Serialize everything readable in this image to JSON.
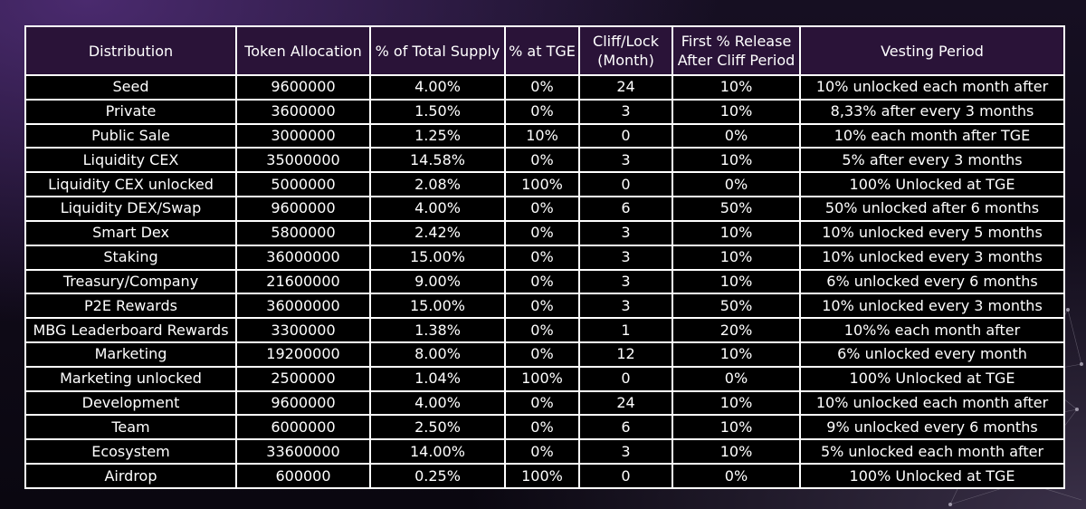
{
  "table": {
    "headers": {
      "distribution": "Distribution",
      "allocation": "Token Allocation",
      "percent_supply": "% of Total Supply",
      "percent_tge": "% at TGE",
      "cliff_line1": "Cliff/Lock",
      "cliff_line2": "(Month)",
      "first_release_line1": "First % Release",
      "first_release_line2": "After Cliff Period",
      "vesting": "Vesting Period"
    },
    "rows": [
      {
        "distribution": "Seed",
        "allocation": "9600000",
        "percent_supply": "4.00%",
        "percent_tge": "0%",
        "cliff": "24",
        "first_release": "10%",
        "vesting": "10% unlocked each month after"
      },
      {
        "distribution": "Private",
        "allocation": "3600000",
        "percent_supply": "1.50%",
        "percent_tge": "0%",
        "cliff": "3",
        "first_release": "10%",
        "vesting": "8,33% after every 3 months"
      },
      {
        "distribution": "Public Sale",
        "allocation": "3000000",
        "percent_supply": "1.25%",
        "percent_tge": "10%",
        "cliff": "0",
        "first_release": "0%",
        "vesting": "10% each month after TGE"
      },
      {
        "distribution": "Liquidity CEX",
        "allocation": "35000000",
        "percent_supply": "14.58%",
        "percent_tge": "0%",
        "cliff": "3",
        "first_release": "10%",
        "vesting": "5% after every 3 months"
      },
      {
        "distribution": "Liquidity CEX unlocked",
        "allocation": "5000000",
        "percent_supply": "2.08%",
        "percent_tge": "100%",
        "cliff": "0",
        "first_release": "0%",
        "vesting": "100% Unlocked at TGE"
      },
      {
        "distribution": "Liquidity DEX/Swap",
        "allocation": "9600000",
        "percent_supply": "4.00%",
        "percent_tge": "0%",
        "cliff": "6",
        "first_release": "50%",
        "vesting": "50% unlocked after 6 months"
      },
      {
        "distribution": "Smart Dex",
        "allocation": "5800000",
        "percent_supply": "2.42%",
        "percent_tge": "0%",
        "cliff": "3",
        "first_release": "10%",
        "vesting": "10% unlocked every 5 months"
      },
      {
        "distribution": "Staking",
        "allocation": "36000000",
        "percent_supply": "15.00%",
        "percent_tge": "0%",
        "cliff": "3",
        "first_release": "10%",
        "vesting": "10% unlocked every 3 months"
      },
      {
        "distribution": "Treasury/Company",
        "allocation": "21600000",
        "percent_supply": "9.00%",
        "percent_tge": "0%",
        "cliff": "3",
        "first_release": "10%",
        "vesting": "6% unlocked every 6 months"
      },
      {
        "distribution": "P2E Rewards",
        "allocation": "36000000",
        "percent_supply": "15.00%",
        "percent_tge": "0%",
        "cliff": "3",
        "first_release": "50%",
        "vesting": "10% unlocked every 3 months"
      },
      {
        "distribution": "MBG Leaderboard Rewards",
        "allocation": "3300000",
        "percent_supply": "1.38%",
        "percent_tge": "0%",
        "cliff": "1",
        "first_release": "20%",
        "vesting": "10%% each month after"
      },
      {
        "distribution": "Marketing",
        "allocation": "19200000",
        "percent_supply": "8.00%",
        "percent_tge": "0%",
        "cliff": "12",
        "first_release": "10%",
        "vesting": "6% unlocked every month"
      },
      {
        "distribution": "Marketing unlocked",
        "allocation": "2500000",
        "percent_supply": "1.04%",
        "percent_tge": "100%",
        "cliff": "0",
        "first_release": "0%",
        "vesting": "100% Unlocked at TGE"
      },
      {
        "distribution": "Development",
        "allocation": "9600000",
        "percent_supply": "4.00%",
        "percent_tge": "0%",
        "cliff": "24",
        "first_release": "10%",
        "vesting": "10% unlocked each month after"
      },
      {
        "distribution": "Team",
        "allocation": "6000000",
        "percent_supply": "2.50%",
        "percent_tge": "0%",
        "cliff": "6",
        "first_release": "10%",
        "vesting": "9% unlocked every 6 months"
      },
      {
        "distribution": "Ecosystem",
        "allocation": "33600000",
        "percent_supply": "14.00%",
        "percent_tge": "0%",
        "cliff": "3",
        "first_release": "10%",
        "vesting": "5% unlocked each month after"
      },
      {
        "distribution": "Airdrop",
        "allocation": "600000",
        "percent_supply": "0.25%",
        "percent_tge": "100%",
        "cliff": "0",
        "first_release": "0%",
        "vesting": "100% Unlocked at TGE"
      }
    ]
  },
  "colors": {
    "header_bg": "#2a1338",
    "cell_bg": "#000000",
    "border": "#ffffff",
    "text": "#ffffff"
  }
}
